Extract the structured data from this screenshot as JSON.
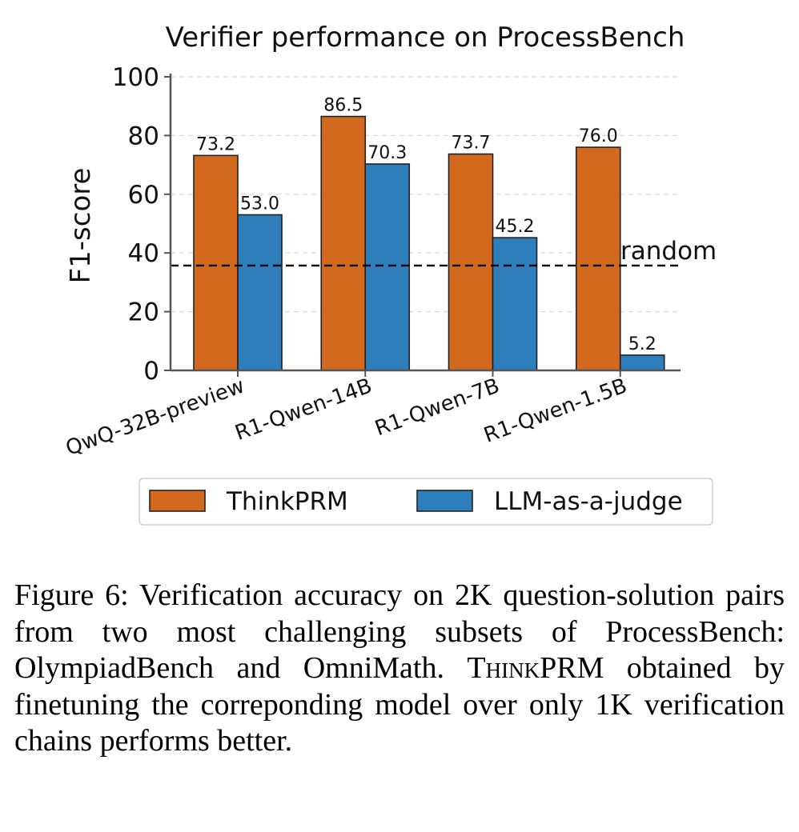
{
  "chart_data": {
    "type": "bar",
    "title": "Verifier performance on ProcessBench",
    "ylabel": "F1-score",
    "xlabel": "",
    "ylim": [
      0,
      100
    ],
    "yticks": [
      0,
      20,
      40,
      60,
      80,
      100
    ],
    "grid": true,
    "categories": [
      "QwQ-32B-preview",
      "R1-Qwen-14B",
      "R1-Qwen-7B",
      "R1-Qwen-1.5B"
    ],
    "series": [
      {
        "name": "ThinkPRM",
        "values": [
          73.2,
          86.5,
          73.7,
          76.0
        ],
        "color": "#D2691E"
      },
      {
        "name": "LLM-as-a-judge",
        "values": [
          53.0,
          70.3,
          45.2,
          5.2
        ],
        "color": "#2E7EBC"
      }
    ],
    "value_labels": [
      [
        "73.2",
        "86.5",
        "73.7",
        "76.0"
      ],
      [
        "53.0",
        "70.3",
        "45.2",
        "5.2"
      ]
    ],
    "reference_line": {
      "label": "random",
      "value": 35.7,
      "style": "dashed"
    },
    "legend_position": "bottom"
  },
  "caption": {
    "prefix": "Figure 6: Verification accuracy on 2K question-solution pairs from two most challenging subsets of ProcessBench: OlympiadBench and OmniMath.",
    "method_name": "ThinkPRM",
    "suffix": "obtained by finetuning the correponding model over only 1K verification chains performs better."
  }
}
